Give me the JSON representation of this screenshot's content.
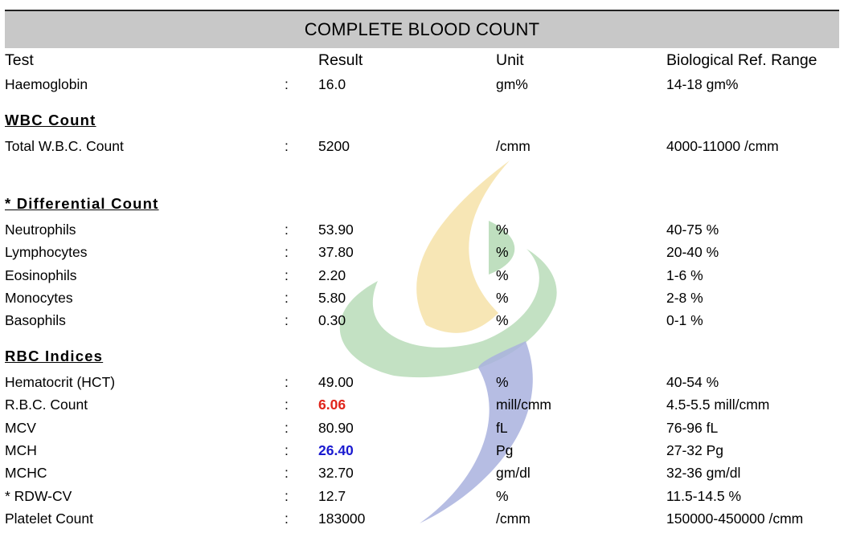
{
  "report": {
    "title": "COMPLETE BLOOD COUNT",
    "headers": {
      "test": "Test",
      "result": "Result",
      "unit": "Unit",
      "range": "Biological Ref. Range"
    },
    "colon": ":",
    "colors": {
      "high": "#e0251b",
      "low": "#1a1ad0",
      "title_bar": "#c8c8c8"
    },
    "haemoglobin": {
      "test": "Haemoglobin",
      "result": "16.0",
      "unit": "gm%",
      "range": "14-18 gm%"
    },
    "wbc": {
      "heading": "WBC Count",
      "rows": [
        {
          "test": "Total W.B.C. Count",
          "result": "5200",
          "unit": "/cmm",
          "range": "4000-11000 /cmm"
        }
      ]
    },
    "differential": {
      "heading": "* Differential Count",
      "rows": [
        {
          "test": "Neutrophils",
          "result": "53.90",
          "unit": "%",
          "range": "40-75 %"
        },
        {
          "test": "Lymphocytes",
          "result": "37.80",
          "unit": "%",
          "range": "20-40 %"
        },
        {
          "test": "Eosinophils",
          "result": "2.20",
          "unit": "%",
          "range": "1-6 %"
        },
        {
          "test": "Monocytes",
          "result": "5.80",
          "unit": "%",
          "range": "2-8 %"
        },
        {
          "test": "Basophils",
          "result": "0.30",
          "unit": "%",
          "range": "0-1 %"
        }
      ]
    },
    "rbc": {
      "heading": "RBC Indices",
      "rows": [
        {
          "test": "Hematocrit (HCT)",
          "result": "49.00",
          "unit": "%",
          "range": "40-54 %"
        },
        {
          "test": "R.B.C. Count",
          "result": "6.06",
          "unit": "mill/cmm",
          "range": "4.5-5.5 mill/cmm",
          "flag": "high"
        },
        {
          "test": "MCV",
          "result": "80.90",
          "unit": "fL",
          "range": "76-96 fL"
        },
        {
          "test": "MCH",
          "result": "26.40",
          "unit": "Pg",
          "range": "27-32 Pg",
          "flag": "low"
        },
        {
          "test": "MCHC",
          "result": "32.70",
          "unit": "gm/dl",
          "range": "32-36 gm/dl"
        },
        {
          "test": "* RDW-CV",
          "result": "12.7",
          "unit": "%",
          "range": "11.5-14.5 %"
        },
        {
          "test": "Platelet Count",
          "result": "183000",
          "unit": "/cmm",
          "range": "150000-450000 /cmm"
        }
      ]
    },
    "watermark_icon": "lab-logo-watermark-icon"
  }
}
